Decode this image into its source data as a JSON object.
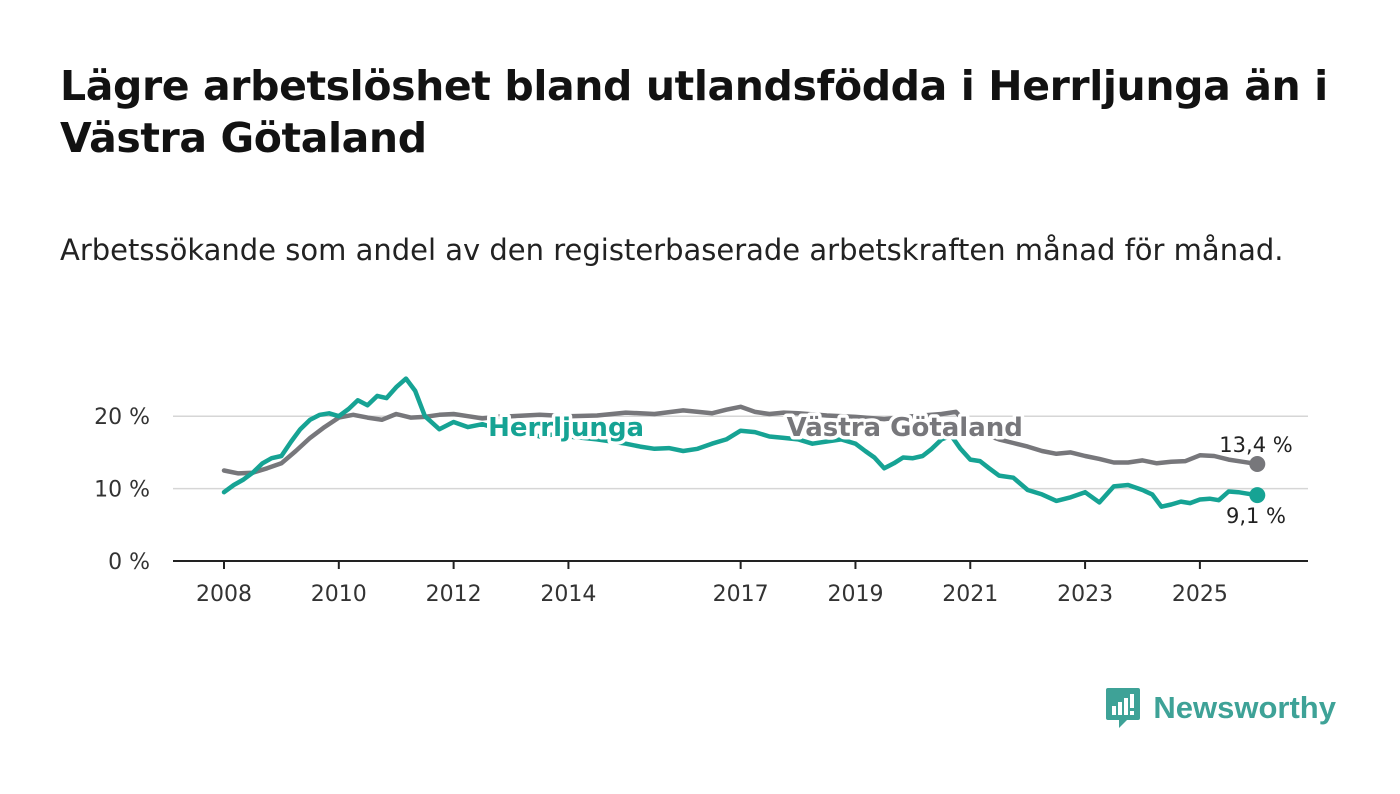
{
  "title": "Lägre arbetslöshet bland utlandsfödda i Herrljunga än i Västra Götaland",
  "subtitle": "Arbetssökande som andel av den registerbaserade arbetskraften månad för månad.",
  "brand": {
    "name": "Newsworthy",
    "icon": "newsworthy-logo-icon",
    "color": "#3ea297"
  },
  "chart_data": {
    "type": "line",
    "xlim": [
      2008,
      2026.5
    ],
    "ylim": [
      0,
      25
    ],
    "y_ticks": [
      0,
      10,
      20
    ],
    "y_tick_labels": [
      "0 %",
      "10 %",
      "20 %"
    ],
    "x_ticks": [
      2008,
      2010,
      2012,
      2014,
      2017,
      2019,
      2021,
      2023,
      2025
    ],
    "x_tick_labels": [
      "2008",
      "2010",
      "2012",
      "2014",
      "2017",
      "2019",
      "2021",
      "2023",
      "2025"
    ],
    "grid": true,
    "series": [
      {
        "name": "Västra Götaland",
        "color": "#77777b",
        "label_at": {
          "x": 2017.8,
          "y": 18.5
        },
        "end_label": "13,4 %",
        "x": [
          2008.0,
          2008.25,
          2008.5,
          2008.75,
          2009.0,
          2009.25,
          2009.5,
          2009.75,
          2010.0,
          2010.25,
          2010.5,
          2010.75,
          2011.0,
          2011.25,
          2011.5,
          2011.75,
          2012.0,
          2012.25,
          2012.5,
          2012.75,
          2013.0,
          2013.5,
          2014.0,
          2014.5,
          2015.0,
          2015.5,
          2016.0,
          2016.5,
          2016.75,
          2017.0,
          2017.25,
          2017.5,
          2017.75,
          2018.0,
          2018.5,
          2019.0,
          2019.5,
          2020.0,
          2020.5,
          2020.75,
          2021.0,
          2021.25,
          2021.5,
          2021.75,
          2022.0,
          2022.25,
          2022.5,
          2022.75,
          2023.0,
          2023.25,
          2023.5,
          2023.75,
          2024.0,
          2024.25,
          2024.5,
          2024.75,
          2025.0,
          2025.25,
          2025.5,
          2025.75,
          2026.0
        ],
        "y": [
          12.5,
          12.1,
          12.2,
          12.8,
          13.5,
          15.2,
          17.0,
          18.5,
          19.8,
          20.2,
          19.8,
          19.5,
          20.3,
          19.8,
          19.9,
          20.2,
          20.3,
          20.0,
          19.7,
          19.9,
          20.0,
          20.2,
          20.0,
          20.1,
          20.5,
          20.3,
          20.8,
          20.4,
          20.9,
          21.3,
          20.6,
          20.3,
          20.5,
          20.4,
          20.1,
          19.9,
          19.6,
          20.0,
          20.3,
          20.6,
          18.5,
          17.5,
          16.8,
          16.3,
          15.8,
          15.2,
          14.8,
          15.0,
          14.5,
          14.1,
          13.6,
          13.6,
          13.9,
          13.5,
          13.7,
          13.8,
          14.6,
          14.5,
          14.0,
          13.7,
          13.4
        ]
      },
      {
        "name": "Herrljunga",
        "color": "#16a394",
        "label_at": {
          "x": 2012.6,
          "y": 18.5
        },
        "end_label": "9,1 %",
        "x": [
          2008.0,
          2008.17,
          2008.33,
          2008.5,
          2008.67,
          2008.83,
          2009.0,
          2009.17,
          2009.33,
          2009.5,
          2009.67,
          2009.83,
          2010.0,
          2010.17,
          2010.33,
          2010.5,
          2010.67,
          2010.83,
          2011.0,
          2011.17,
          2011.33,
          2011.5,
          2011.75,
          2012.0,
          2012.25,
          2012.5,
          2012.75,
          2013.0,
          2013.25,
          2013.5,
          2013.75,
          2014.0,
          2014.25,
          2014.5,
          2014.75,
          2015.0,
          2015.25,
          2015.5,
          2015.75,
          2016.0,
          2016.25,
          2016.5,
          2016.75,
          2017.0,
          2017.25,
          2017.5,
          2017.75,
          2018.0,
          2018.25,
          2018.5,
          2018.75,
          2019.0,
          2019.17,
          2019.33,
          2019.5,
          2019.67,
          2019.83,
          2020.0,
          2020.17,
          2020.33,
          2020.5,
          2020.67,
          2020.83,
          2021.0,
          2021.17,
          2021.33,
          2021.5,
          2021.75,
          2022.0,
          2022.25,
          2022.5,
          2022.75,
          2023.0,
          2023.25,
          2023.5,
          2023.75,
          2024.0,
          2024.17,
          2024.33,
          2024.5,
          2024.67,
          2024.83,
          2025.0,
          2025.17,
          2025.33,
          2025.5,
          2025.67,
          2025.83,
          2026.0
        ],
        "y": [
          9.5,
          10.5,
          11.2,
          12.2,
          13.5,
          14.2,
          14.5,
          16.5,
          18.2,
          19.5,
          20.2,
          20.4,
          20.0,
          21.0,
          22.2,
          21.5,
          22.8,
          22.5,
          24.0,
          25.2,
          23.5,
          20.0,
          18.2,
          19.2,
          18.5,
          18.9,
          18.3,
          18.0,
          17.8,
          17.2,
          17.5,
          17.2,
          17.0,
          16.8,
          16.5,
          16.2,
          15.8,
          15.5,
          15.6,
          15.2,
          15.5,
          16.2,
          16.8,
          18.0,
          17.8,
          17.2,
          17.0,
          16.8,
          16.2,
          16.5,
          16.8,
          16.2,
          15.2,
          14.3,
          12.8,
          13.5,
          14.3,
          14.2,
          14.5,
          15.5,
          16.8,
          17.3,
          15.5,
          14.0,
          13.8,
          12.8,
          11.8,
          11.5,
          9.8,
          9.2,
          8.3,
          8.8,
          9.5,
          8.1,
          10.3,
          10.5,
          9.8,
          9.2,
          7.5,
          7.8,
          8.2,
          8.0,
          8.5,
          8.6,
          8.4,
          9.6,
          9.5,
          9.3,
          9.1
        ]
      }
    ]
  }
}
